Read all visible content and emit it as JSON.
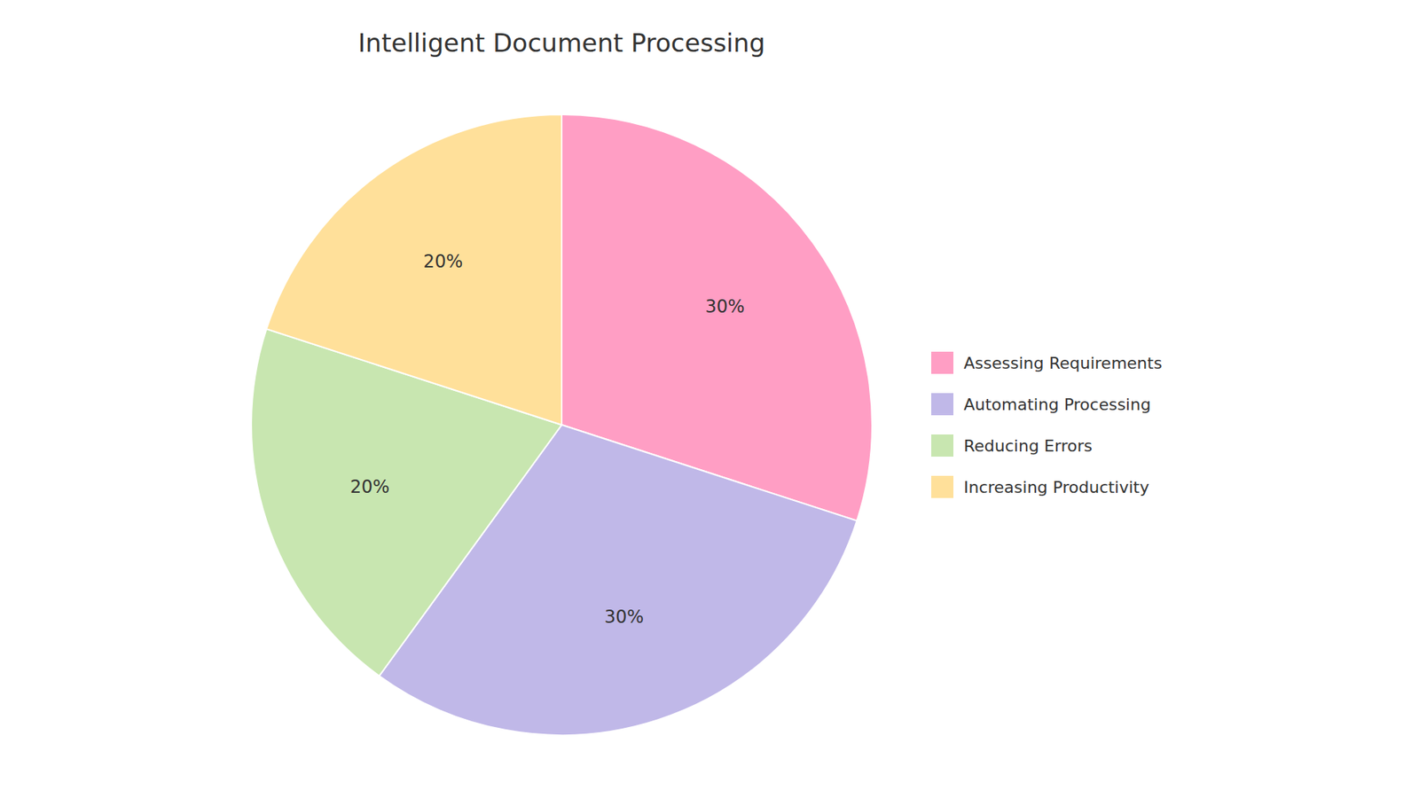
{
  "chart_data": {
    "type": "pie",
    "title": "Intelligent Document Processing",
    "categories": [
      "Assessing Requirements",
      "Automating Processing",
      "Reducing Errors",
      "Increasing Productivity"
    ],
    "values": [
      30,
      30,
      20,
      20
    ],
    "value_labels": [
      "30%",
      "30%",
      "20%",
      "20%"
    ],
    "colors": [
      "#FF9EC4",
      "#C0B8E8",
      "#C8E6B0",
      "#FFE09A"
    ],
    "data_labels": true,
    "legend": "right"
  }
}
